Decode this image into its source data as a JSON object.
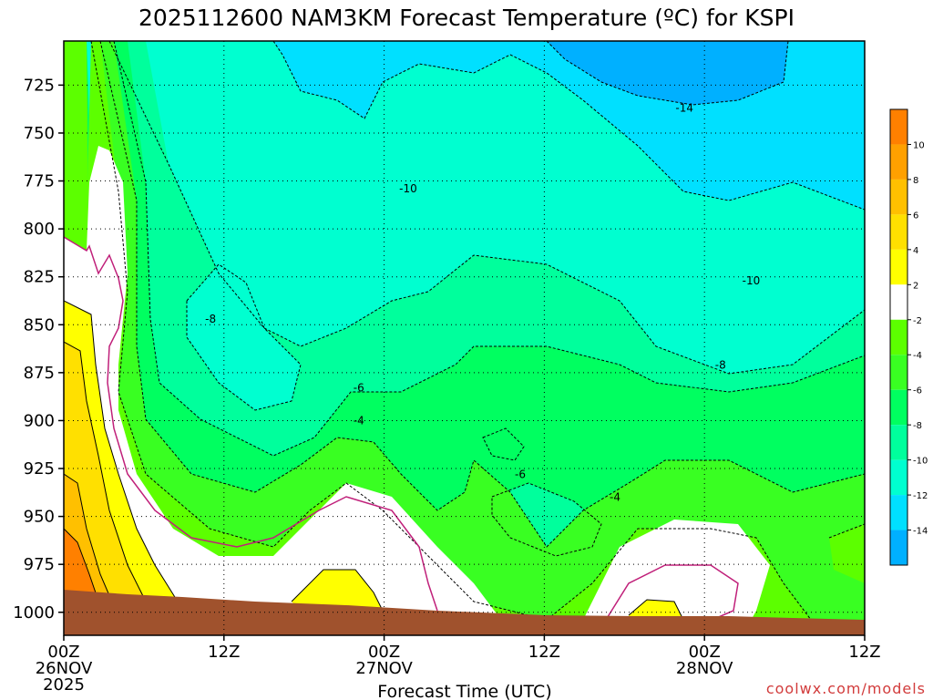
{
  "chart_data": {
    "type": "heatmap",
    "title": "2025112600 NAM3KM Forecast Temperature (ºC) for KSPI",
    "xlabel": "Forecast Time (UTC)",
    "ylabel": "",
    "x_ticks": [
      {
        "hour": 0,
        "lines": [
          "00Z",
          "26NOV",
          "2025"
        ]
      },
      {
        "hour": 12,
        "lines": [
          "12Z"
        ]
      },
      {
        "hour": 24,
        "lines": [
          "00Z",
          "27NOV"
        ]
      },
      {
        "hour": 36,
        "lines": [
          "12Z"
        ]
      },
      {
        "hour": 48,
        "lines": [
          "00Z",
          "28NOV"
        ]
      },
      {
        "hour": 60,
        "lines": [
          "12Z"
        ]
      }
    ],
    "xlim": [
      0,
      60
    ],
    "y_ticks": [
      725,
      750,
      775,
      800,
      825,
      850,
      875,
      900,
      925,
      950,
      975,
      1000
    ],
    "ylim": [
      702,
      1012
    ],
    "contour_labels": [
      {
        "text": "-14",
        "hour": 46.5,
        "p": 737
      },
      {
        "text": "-10",
        "hour": 25.8,
        "p": 779
      },
      {
        "text": "-10",
        "hour": 51.5,
        "p": 827
      },
      {
        "text": "-8",
        "hour": 11.0,
        "p": 847
      },
      {
        "text": "-8",
        "hour": 49.2,
        "p": 871
      },
      {
        "text": "-6",
        "hour": 22.1,
        "p": 883
      },
      {
        "text": "-6",
        "hour": 34.2,
        "p": 928
      },
      {
        "text": "-4",
        "hour": 22.1,
        "p": 900
      },
      {
        "text": "-4",
        "hour": 41.3,
        "p": 940
      }
    ],
    "colorbar": {
      "labels": [
        "-14",
        "-12",
        "-10",
        "-8",
        "-6",
        "-4",
        "-2",
        "2",
        "4",
        "6",
        "8",
        "10"
      ],
      "colors": [
        "#00b0ff",
        "#00e0ff",
        "#00ffd0",
        "#00ff9c",
        "#00ff60",
        "#39ff22",
        "#5cff00",
        "#ffffff",
        "#ffff00",
        "#ffe000",
        "#ffc000",
        "#ffa000",
        "#ff8000"
      ]
    },
    "colors": {
      "ground": "#a0522d",
      "magenta_contour": "#c0207a"
    }
  },
  "credit": "coolwx.com/models"
}
